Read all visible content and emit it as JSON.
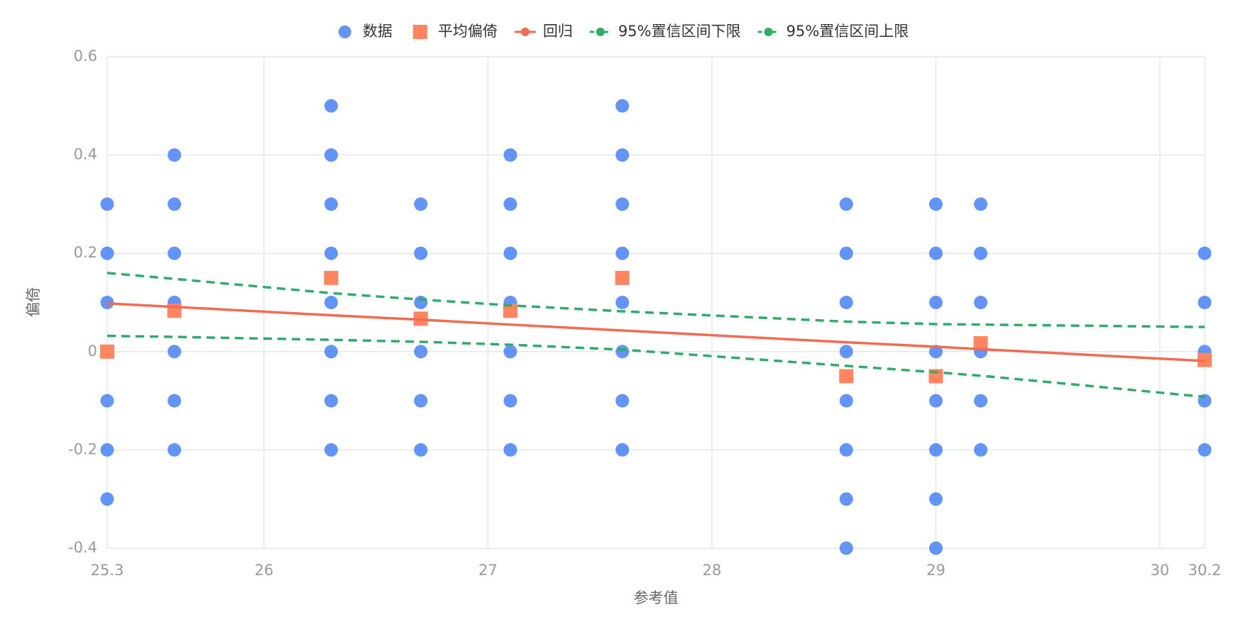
{
  "chart_data": {
    "type": "scatter",
    "x_label": "参考值",
    "y_label": "偏倚",
    "xlim": [
      25.3,
      30.2
    ],
    "xticks": [
      25.3,
      26,
      27,
      28,
      29,
      30,
      30.2
    ],
    "ylim": [
      -0.4,
      0.6
    ],
    "yticks": [
      -0.4,
      -0.2,
      0,
      0.2,
      0.4,
      0.6
    ],
    "grid": true,
    "legend": "top",
    "series": [
      {
        "name": "数据",
        "type": "scatter",
        "marker": "circle",
        "color": "#3b7bf5",
        "x": [
          25.3,
          25.3,
          25.3,
          25.3,
          25.3,
          25.3,
          25.3,
          25.6,
          25.6,
          25.6,
          25.6,
          25.6,
          25.6,
          25.6,
          26.3,
          26.3,
          26.3,
          26.3,
          26.3,
          26.3,
          26.3,
          26.3,
          26.7,
          26.7,
          26.7,
          26.7,
          26.7,
          26.7,
          27.1,
          27.1,
          27.1,
          27.1,
          27.1,
          27.1,
          27.1,
          27.6,
          27.6,
          27.6,
          27.6,
          27.6,
          27.6,
          27.6,
          27.6,
          28.6,
          28.6,
          28.6,
          28.6,
          28.6,
          28.6,
          28.6,
          28.6,
          29.0,
          29.0,
          29.0,
          29.0,
          29.0,
          29.0,
          29.0,
          29.0,
          29.2,
          29.2,
          29.2,
          29.2,
          29.2,
          29.2,
          30.2,
          30.2,
          30.2,
          30.2,
          30.2
        ],
        "values": [
          0.3,
          0.2,
          0.1,
          0,
          -0.1,
          -0.2,
          -0.3,
          0.4,
          0.3,
          0.2,
          0.1,
          0,
          -0.1,
          -0.2,
          0.5,
          0.4,
          0.3,
          0.2,
          0.1,
          0,
          -0.1,
          -0.2,
          0.3,
          0.2,
          0.1,
          0,
          -0.1,
          -0.2,
          0.4,
          0.3,
          0.2,
          0.1,
          0,
          -0.1,
          -0.2,
          0.5,
          0.4,
          0.3,
          0.2,
          0.1,
          0,
          -0.1,
          -0.2,
          0.3,
          0.2,
          0.1,
          0,
          -0.1,
          -0.2,
          -0.3,
          -0.4,
          0.3,
          0.2,
          0.1,
          0,
          -0.1,
          -0.2,
          -0.3,
          -0.4,
          0.3,
          0.2,
          0.1,
          0,
          -0.1,
          -0.2,
          0.2,
          0.1,
          0,
          -0.1,
          -0.2
        ]
      },
      {
        "name": "平均偏倚",
        "type": "scatter",
        "marker": "square",
        "color": "#ff8460",
        "x": [
          25.3,
          25.6,
          26.3,
          26.7,
          27.1,
          27.6,
          28.6,
          29.0,
          29.2,
          30.2
        ],
        "values": [
          0,
          0.083,
          0.15,
          0.067,
          0.083,
          0.15,
          -0.05,
          -0.05,
          0.017,
          -0.017
        ]
      },
      {
        "name": "回归",
        "type": "line",
        "color": "#f26b50",
        "x": [
          25.3,
          25.6,
          26.3,
          26.7,
          27.1,
          27.6,
          28.6,
          29.0,
          29.2,
          30.2
        ],
        "values": [
          0.098,
          0.091,
          0.074,
          0.065,
          0.055,
          0.043,
          0.019,
          0.01,
          0.005,
          -0.019
        ]
      },
      {
        "name": "95%置信区间下限",
        "type": "line",
        "dashed": true,
        "color": "#2eac6a",
        "x": [
          25.3,
          25.6,
          26.3,
          26.7,
          27.1,
          27.6,
          28.6,
          29.0,
          29.2,
          30.2
        ],
        "values": [
          0.032,
          0.03,
          0.024,
          0.02,
          0.014,
          0.004,
          -0.029,
          -0.042,
          -0.049,
          -0.092
        ]
      },
      {
        "name": "95%置信区间上限",
        "type": "line",
        "dashed": true,
        "color": "#2eac6a",
        "x": [
          25.3,
          25.6,
          26.3,
          26.7,
          27.1,
          27.6,
          28.6,
          29.0,
          29.2,
          30.2
        ],
        "values": [
          0.16,
          0.148,
          0.119,
          0.106,
          0.094,
          0.082,
          0.061,
          0.056,
          0.055,
          0.05
        ]
      }
    ]
  }
}
